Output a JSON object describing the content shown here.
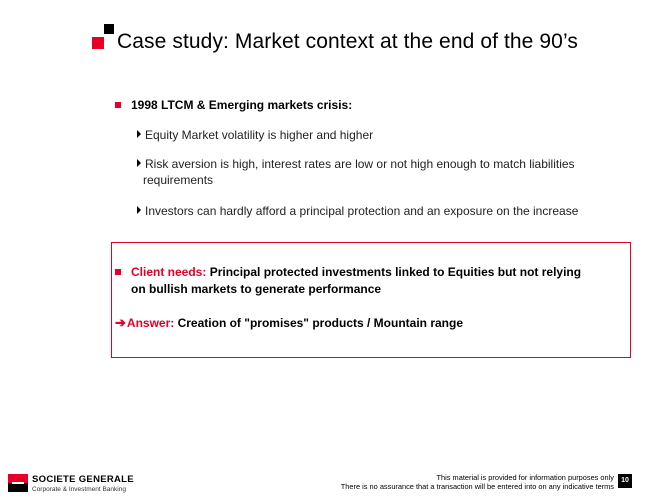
{
  "slide": {
    "title": "Case study: Market context at the end of the 90’s",
    "main_point": "1998 LTCM & Emerging markets crisis:",
    "sub_points": [
      {
        "line1": "Equity Market volatility is higher and higher",
        "line2": ""
      },
      {
        "line1": "Risk aversion is high, interest rates are low or not high enough to match liabilities",
        "line2": "requirements"
      },
      {
        "line1": "Investors can hardly afford a principal protection and an exposure on the increase",
        "line2": ""
      }
    ],
    "client_needs": {
      "label": "Client needs:",
      "text_line1": "Principal protected investments linked to Equities but not relying",
      "text_line2": "on bullish markets to generate performance"
    },
    "answer": {
      "arrow": "➔",
      "label": "Answer:",
      "text": "Creation of \"promises\" products / Mountain range"
    }
  },
  "footer": {
    "brand": "SOCIETE GENERALE",
    "brand_sub": "Corporate & Investment Banking",
    "disclaimer_line1": "This material is provided for information purposes only",
    "disclaimer_line2": "There is no assurance that a transaction will be entered into on any indicative terms",
    "page_number": "10"
  },
  "colors": {
    "accent": "#e60028",
    "text": "#000000"
  }
}
